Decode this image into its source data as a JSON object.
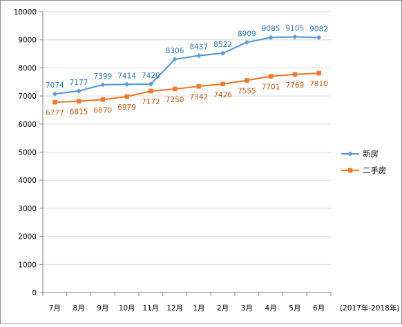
{
  "chart_data": {
    "type": "line",
    "categories": [
      "7月",
      "8月",
      "9月",
      "10月",
      "11月",
      "12月",
      "1月",
      "2月",
      "3月",
      "4月",
      "5月",
      "6月"
    ],
    "x_unit_note": "(2017年-2018年)",
    "ylim": [
      0,
      10000
    ],
    "yticks": [
      0,
      1000,
      2000,
      3000,
      4000,
      5000,
      6000,
      7000,
      8000,
      9000,
      10000
    ],
    "grid": "horizontal",
    "legend_position": "right",
    "series": [
      {
        "name": "新房",
        "color": "#5b9bd5",
        "marker": "diamond",
        "values": [
          7074,
          7177,
          7399,
          7414,
          7420,
          8306,
          8437,
          8522,
          8909,
          9085,
          9105,
          9082
        ]
      },
      {
        "name": "二手房",
        "color": "#ed7d31",
        "marker": "square",
        "values": [
          6777,
          6815,
          6870,
          6979,
          7172,
          7250,
          7342,
          7426,
          7555,
          7701,
          7769,
          7810
        ]
      }
    ]
  }
}
